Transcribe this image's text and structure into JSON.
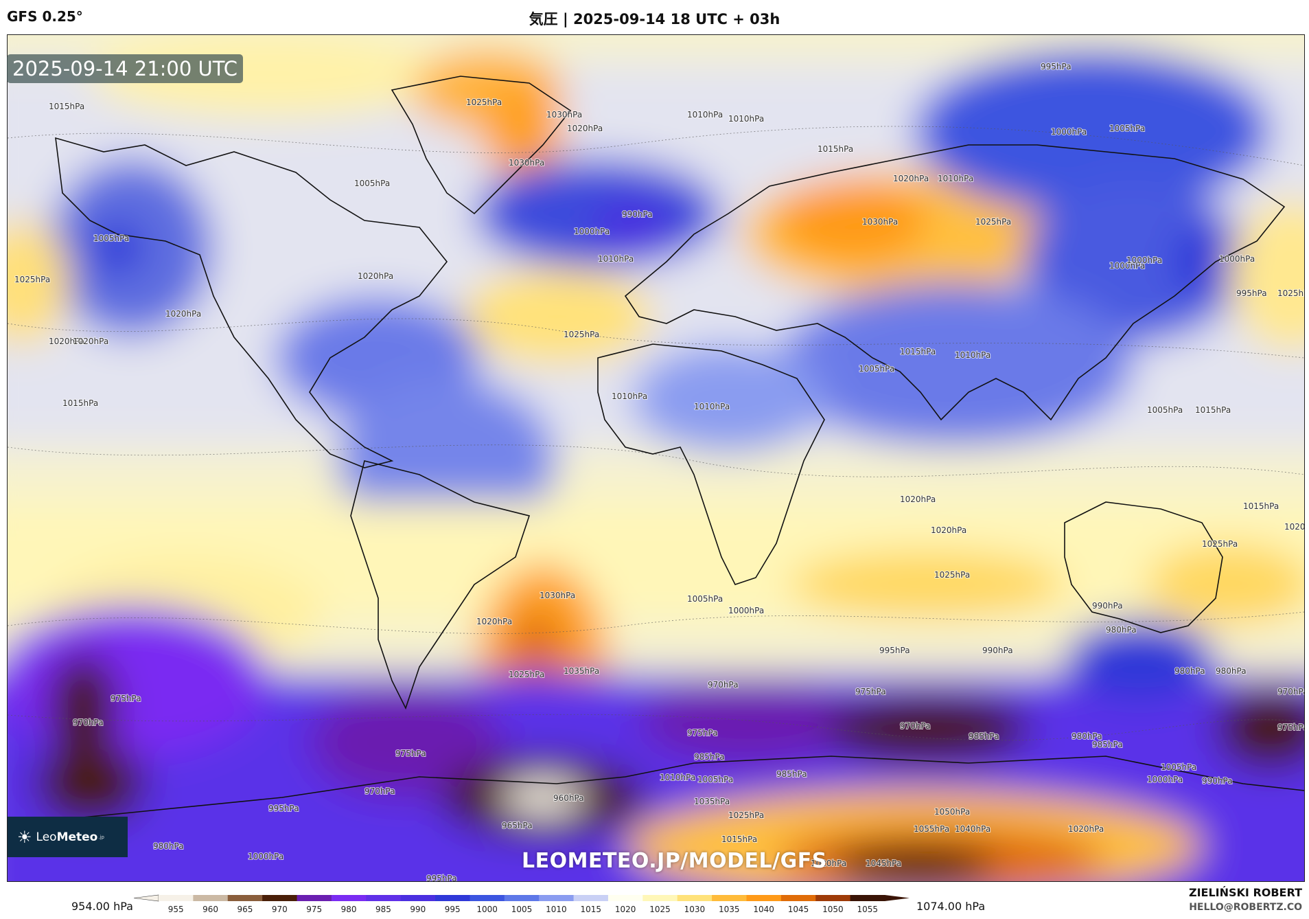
{
  "header": {
    "model": "GFS 0.25°",
    "title": "気圧 | 2025-09-14 18 UTC + 03h"
  },
  "map": {
    "timestamp": "2025-09-14 21:00 UTC",
    "watermark": "LEOMETEO.JP/MODEL/GFS",
    "logo": {
      "text_light": "Leo",
      "text_bold": "Meteo",
      "suffix": ".jp"
    },
    "pressure_labels": [
      "1015hPa",
      "1025hPa",
      "1030hPa",
      "1020hPa",
      "1030hPa",
      "1010hPa",
      "1010hPa",
      "995hPa",
      "1000hPa",
      "1005hPa",
      "1015hPa",
      "1020hPa",
      "1010hPa",
      "1005hPa",
      "1000hPa",
      "990hPa",
      "1010hPa",
      "1000hPa",
      "995hPa",
      "1005hPa",
      "1025hPa",
      "1020hPa",
      "1020hPa",
      "1020hPa",
      "1015hPa",
      "1025hPa",
      "1010hPa",
      "1020hPa",
      "1030hPa",
      "1025hPa",
      "1005hPa",
      "1005hPa",
      "1000hPa",
      "1000hPa",
      "1025hPa",
      "1010hPa",
      "1010hPa",
      "1015hPa",
      "1020hPa",
      "1015hPa",
      "1015hPa",
      "1020hPa",
      "1025hPa",
      "1025hPa",
      "1020hPa",
      "1030hPa",
      "1035hPa",
      "1020hPa",
      "1025hPa",
      "1005hPa",
      "1000hPa",
      "990hPa",
      "980hPa",
      "995hPa",
      "990hPa",
      "970hPa",
      "975hPa",
      "975hPa",
      "970hPa",
      "980hPa",
      "970hPa",
      "975hPa",
      "985hPa",
      "980hPa",
      "985hPa",
      "975hPa",
      "970hPa",
      "960hPa",
      "965hPa",
      "995hPa",
      "985hPa",
      "1005hPa",
      "1000hPa",
      "990hPa",
      "980hPa",
      "1010hPa",
      "1005hPa",
      "1035hPa",
      "1025hPa",
      "1050hPa",
      "1055hPa",
      "1045hPa",
      "1040hPa",
      "1020hPa",
      "1015hPa",
      "1020hPa",
      "1000hPa",
      "995hPa",
      "985hPa",
      "980hPa",
      "970hPa",
      "975hPa"
    ]
  },
  "colorbar": {
    "min_label": "954.00 hPa",
    "max_label": "1074.00 hPa",
    "ticks": [
      "955",
      "960",
      "965",
      "970",
      "975",
      "980",
      "985",
      "990",
      "995",
      "1000",
      "1005",
      "1010",
      "1015",
      "1020",
      "1025",
      "1030",
      "1035",
      "1040",
      "1045",
      "1050",
      "1055"
    ],
    "colors": [
      "#f6f1e8",
      "#cbb9a4",
      "#8a5e3c",
      "#4a1f08",
      "#6a1fb0",
      "#7a2cf2",
      "#6030e8",
      "#4b2fe0",
      "#2f38d8",
      "#3c55e0",
      "#5e78e8",
      "#8a9cf0",
      "#c9d0f5",
      "#fffff0",
      "#fff7b8",
      "#ffe27a",
      "#ffbb3a",
      "#ff9a18",
      "#e06c08",
      "#9e3b08",
      "#3a1406"
    ],
    "tick_values": [
      955,
      960,
      965,
      970,
      975,
      980,
      985,
      990,
      995,
      1000,
      1005,
      1010,
      1015,
      1020,
      1025,
      1030,
      1035,
      1040,
      1045,
      1050,
      1055
    ],
    "range": [
      954,
      1074
    ]
  },
  "credit": {
    "name": "ZIELIŃSKI ROBERT",
    "email": "HELLO@ROBERTZ.CO"
  }
}
